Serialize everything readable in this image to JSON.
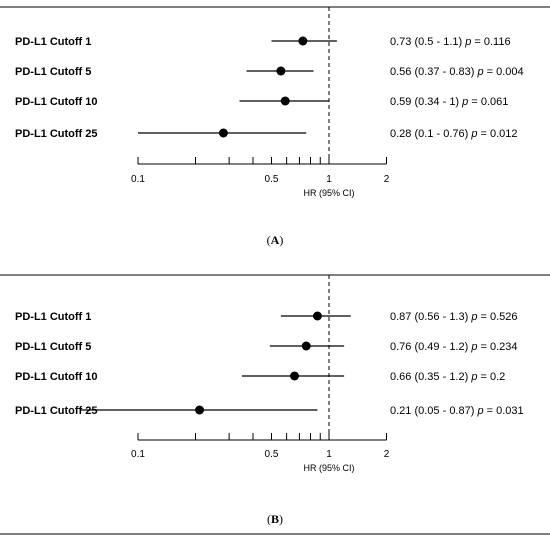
{
  "chart_data": [
    {
      "type": "forest",
      "panel_label": "A",
      "scale": "log",
      "xlabel": "HR (95% CI)",
      "xticks": [
        0.1,
        0.5,
        1,
        2
      ],
      "xtick_labels": [
        "0.1",
        "0.5",
        "1",
        "2"
      ],
      "reference_line": 1,
      "rows": [
        {
          "label": "PD-L1 Cutoff 1",
          "hr": 0.73,
          "lo": 0.5,
          "hi": 1.1,
          "ci_text": "0.73 (0.5 - 1.1)",
          "p_text": "0.116"
        },
        {
          "label": "PD-L1 Cutoff 5",
          "hr": 0.56,
          "lo": 0.37,
          "hi": 0.83,
          "ci_text": "0.56 (0.37 - 0.83)",
          "p_text": "0.004"
        },
        {
          "label": "PD-L1 Cutoff 10",
          "hr": 0.59,
          "lo": 0.34,
          "hi": 1,
          "ci_text": "0.59 (0.34 - 1)",
          "p_text": "0.061"
        },
        {
          "label": "PD-L1 Cutoff 25",
          "hr": 0.28,
          "lo": 0.1,
          "hi": 0.76,
          "ci_text": "0.28 (0.1 - 0.76)",
          "p_text": "0.012"
        }
      ]
    },
    {
      "type": "forest",
      "panel_label": "B",
      "scale": "log",
      "xlabel": "HR (95% CI)",
      "xticks": [
        0.1,
        0.5,
        1,
        2
      ],
      "xtick_labels": [
        "0.1",
        "0.5",
        "1",
        "2"
      ],
      "reference_line": 1,
      "rows": [
        {
          "label": "PD-L1 Cutoff 1",
          "hr": 0.87,
          "lo": 0.56,
          "hi": 1.3,
          "ci_text": "0.87 (0.56 - 1.3)",
          "p_text": "0.526"
        },
        {
          "label": "PD-L1 Cutoff 5",
          "hr": 0.76,
          "lo": 0.49,
          "hi": 1.2,
          "ci_text": "0.76 (0.49 - 1.2)",
          "p_text": "0.234"
        },
        {
          "label": "PD-L1 Cutoff 10",
          "hr": 0.66,
          "lo": 0.35,
          "hi": 1.2,
          "ci_text": "0.66 (0.35 - 1.2)",
          "p_text": "0.2"
        },
        {
          "label": "PD-L1 Cutoff 25",
          "hr": 0.21,
          "lo": 0.05,
          "hi": 0.87,
          "ci_text": "0.21 (0.05 - 0.87)",
          "p_text": "0.031"
        }
      ]
    }
  ],
  "p_symbol": "p",
  "p_equals": " = "
}
